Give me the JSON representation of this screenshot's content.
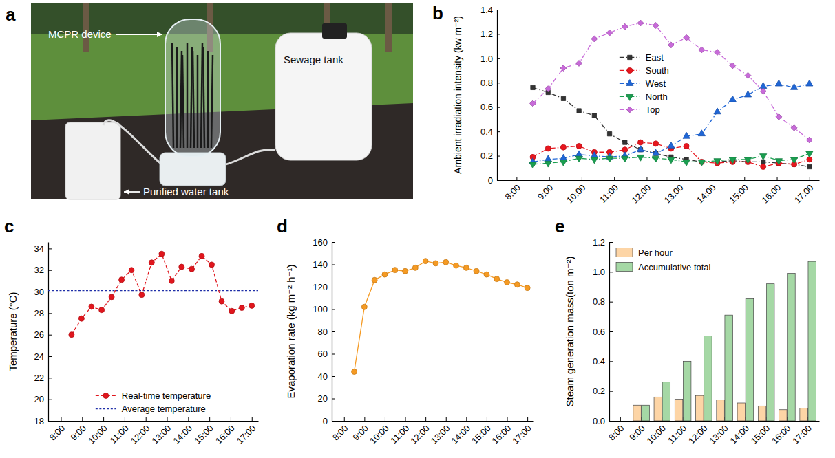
{
  "panel_a": {
    "panel_label": "a",
    "labels": {
      "device": "MCPR device",
      "sewage": "Sewage tank",
      "purified": "Purified water tank"
    }
  },
  "chart_data": [
    {
      "panel_label": "b",
      "type": "line",
      "y_label": "Ambient irradiation intensity (kw m⁻²)",
      "x": [
        8.5,
        8.97,
        9.44,
        9.92,
        10.39,
        10.86,
        11.33,
        11.81,
        12.28,
        12.75,
        13.22,
        13.69,
        14.17,
        14.64,
        15.11,
        15.58,
        16.06,
        16.53,
        17
      ],
      "xlim": [
        7.4,
        17.3
      ],
      "xticks": [
        {
          "value": 8,
          "label": "8:00"
        },
        {
          "value": 9,
          "label": "9:00"
        },
        {
          "value": 10,
          "label": "10:00"
        },
        {
          "value": 11,
          "label": "11:00"
        },
        {
          "value": 12,
          "label": "12:00"
        },
        {
          "value": 13,
          "label": "13:00"
        },
        {
          "value": 14,
          "label": "14:00"
        },
        {
          "value": 15,
          "label": "15:00"
        },
        {
          "value": 16,
          "label": "16:00"
        },
        {
          "value": 17,
          "label": "17:00"
        }
      ],
      "ylim": [
        0,
        1.4
      ],
      "yticks": [
        0,
        0.2,
        0.4,
        0.6,
        0.8,
        {
          "value": 1,
          "label": "1.0"
        },
        1.2,
        1.4
      ],
      "legend": "upper center",
      "line_style": "dash-dot",
      "series": [
        {
          "name": "East",
          "color": "#333333",
          "marker": "square",
          "values": [
            0.76,
            0.72,
            0.67,
            0.57,
            0.53,
            0.38,
            0.31,
            0.25,
            0.22,
            0.19,
            0.17,
            0.15,
            0.15,
            0.16,
            0.15,
            0.15,
            0.14,
            0.13,
            0.11
          ]
        },
        {
          "name": "South",
          "color": "#e8161e",
          "marker": "circle",
          "values": [
            0.19,
            0.26,
            0.27,
            0.28,
            0.23,
            0.23,
            0.25,
            0.31,
            0.3,
            0.26,
            0.28,
            0.15,
            0.14,
            0.15,
            0.15,
            0.11,
            0.14,
            0.13,
            0.17
          ]
        },
        {
          "name": "West",
          "color": "#1f66d6",
          "marker": "triangle",
          "values": [
            0.15,
            0.17,
            0.18,
            0.21,
            0.2,
            0.19,
            0.2,
            0.25,
            0.22,
            0.28,
            0.36,
            0.38,
            0.56,
            0.66,
            0.7,
            0.77,
            0.79,
            0.76,
            0.79
          ]
        },
        {
          "name": "North",
          "color": "#1a9e50",
          "marker": "triangle-down",
          "values": [
            0.13,
            0.14,
            0.15,
            0.18,
            0.17,
            0.18,
            0.18,
            0.19,
            0.18,
            0.17,
            0.15,
            0.15,
            0.16,
            0.17,
            0.17,
            0.2,
            0.16,
            0.17,
            0.22
          ]
        },
        {
          "name": "Top",
          "color": "#c86ad9",
          "marker": "diamond",
          "values": [
            0.63,
            0.75,
            0.92,
            0.96,
            1.16,
            1.21,
            1.26,
            1.29,
            1.27,
            1.11,
            1.17,
            1.07,
            1.05,
            0.94,
            0.86,
            0.73,
            0.52,
            0.43,
            0.33
          ]
        }
      ]
    },
    {
      "panel_label": "c",
      "type": "line",
      "y_label": "Temperature (°C)",
      "x": [
        8.5,
        8.97,
        9.44,
        9.92,
        10.39,
        10.86,
        11.33,
        11.81,
        12.28,
        12.75,
        13.22,
        13.69,
        14.17,
        14.64,
        15.11,
        15.58,
        16.06,
        16.53,
        17
      ],
      "xlim": [
        7.4,
        17.3
      ],
      "xticks": [
        {
          "value": 8,
          "label": "8:00"
        },
        {
          "value": 9,
          "label": "9:00"
        },
        {
          "value": 10,
          "label": "10:00"
        },
        {
          "value": 11,
          "label": "11:00"
        },
        {
          "value": 12,
          "label": "12:00"
        },
        {
          "value": 13,
          "label": "13:00"
        },
        {
          "value": 14,
          "label": "14:00"
        },
        {
          "value": 15,
          "label": "15:00"
        },
        {
          "value": 16,
          "label": "16:00"
        },
        {
          "value": 17,
          "label": "17:00"
        }
      ],
      "ylim": [
        18,
        34.6
      ],
      "yticks": [
        18,
        20,
        22,
        24,
        26,
        28,
        30,
        32,
        34
      ],
      "legend": "lower center",
      "series": [
        {
          "name": "Real-time temperature",
          "color": "#e0161d",
          "marker": "circle",
          "line_style": "dashed",
          "values": [
            26.0,
            27.5,
            28.6,
            28.3,
            29.5,
            31.1,
            32.0,
            29.7,
            32.7,
            33.5,
            31.0,
            32.3,
            32.1,
            33.3,
            32.5,
            29.1,
            28.2,
            28.5,
            28.7
          ]
        }
      ],
      "reference_line": {
        "name": "Average temperature",
        "value": 30.1,
        "color": "#1f2fa8",
        "line_style": "dotted"
      }
    },
    {
      "panel_label": "d",
      "type": "line",
      "y_label": "Evaporation rate (kg m⁻² h⁻¹)",
      "x": [
        8.5,
        9,
        9.5,
        10,
        10.5,
        11,
        11.5,
        12,
        12.5,
        13,
        13.5,
        14,
        14.5,
        15,
        15.5,
        16,
        16.5,
        17
      ],
      "xlim": [
        7.4,
        17.3
      ],
      "xticks": [
        {
          "value": 8,
          "label": "8:00"
        },
        {
          "value": 9,
          "label": "9:00"
        },
        {
          "value": 10,
          "label": "10:00"
        },
        {
          "value": 11,
          "label": "11:00"
        },
        {
          "value": 12,
          "label": "12:00"
        },
        {
          "value": 13,
          "label": "13:00"
        },
        {
          "value": 14,
          "label": "14:00"
        },
        {
          "value": 15,
          "label": "15:00"
        },
        {
          "value": 16,
          "label": "16:00"
        },
        {
          "value": 17,
          "label": "17:00"
        }
      ],
      "ylim": [
        0,
        160
      ],
      "yticks": [
        0,
        20,
        40,
        60,
        80,
        100,
        120,
        140,
        160
      ],
      "series": [
        {
          "color": "#f59a23",
          "marker": "circle",
          "line_style": "solid",
          "values": [
            44,
            102,
            126,
            131,
            135,
            134,
            137,
            143,
            141,
            142,
            139,
            137,
            134,
            131,
            127,
            124,
            122,
            119
          ]
        }
      ]
    },
    {
      "panel_label": "e",
      "type": "bar",
      "y_label": "Steam generation mass(ton m⁻²)",
      "categories": [
        "8:00",
        "9:00",
        "10:00",
        "11:00",
        "12:00",
        "13:00",
        "14:00",
        "15:00",
        "16:00",
        "17:00"
      ],
      "ylim": [
        0,
        1.2
      ],
      "yticks": [
        {
          "value": 0,
          "label": "0.0"
        },
        0.2,
        0.4,
        0.6,
        0.8,
        {
          "value": 1,
          "label": "1.0"
        },
        1.2
      ],
      "legend": "upper left",
      "series": [
        {
          "name": "Per hour",
          "color": "#fdd5a6",
          "values": [
            null,
            0.105,
            0.16,
            0.145,
            0.17,
            0.14,
            0.12,
            0.1,
            0.075,
            0.085
          ]
        },
        {
          "name": "Accumulative total",
          "color": "#a5d8a5",
          "values": [
            null,
            0.105,
            0.26,
            0.4,
            0.57,
            0.71,
            0.82,
            0.92,
            0.99,
            1.07
          ]
        }
      ]
    }
  ]
}
